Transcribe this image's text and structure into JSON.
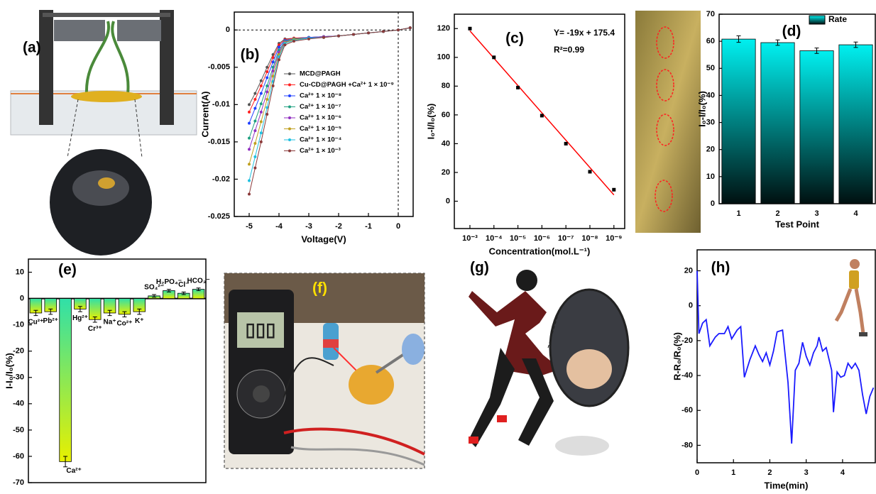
{
  "figure_labels": {
    "a": "(a)",
    "f": "(f)",
    "g": "(g)"
  },
  "chart_data": [
    {
      "type": "line",
      "title": "(b)",
      "xlabel": "Voltage(V)",
      "ylabel": "Current(A)",
      "markers": true,
      "xlim": [
        -5.5,
        0.5
      ],
      "ylim": [
        -0.025,
        0.0024
      ],
      "xticks": [
        -5,
        -4,
        -3,
        -2,
        -1,
        0
      ],
      "yticks": [
        0,
        -0.005,
        -0.01,
        -0.015,
        -0.02,
        -0.025
      ],
      "ref_lines": {
        "x": [
          0
        ],
        "y": [
          0
        ]
      },
      "x": [
        -5,
        -4.8,
        -4.6,
        -4.4,
        -4.2,
        -4,
        -3.8,
        -3.5,
        -3,
        -2.5,
        -2,
        -1.5,
        -1,
        -0.5,
        0,
        0.4
      ],
      "series": [
        {
          "name": "MCD@PAGH",
          "color": "#555555",
          "values": [
            -0.01,
            -0.0085,
            -0.0068,
            -0.005,
            -0.0033,
            -0.0018,
            -0.0012,
            -0.0011,
            -0.001,
            -0.0009,
            -0.0008,
            -0.0006,
            -0.0004,
            -0.0002,
            0,
            0.0003
          ]
        },
        {
          "name": "Cu-CD@PAGH +Ca²⁺ 1 × 10⁻⁹",
          "color": "#ff2020",
          "values": [
            -0.011,
            -0.0093,
            -0.0075,
            -0.0056,
            -0.0037,
            -0.002,
            -0.0013,
            -0.0011,
            -0.001,
            -0.0009,
            -0.0008,
            -0.0006,
            -0.0004,
            -0.0002,
            0,
            0.0003
          ]
        },
        {
          "name": "Ca²⁺ 1 × 10⁻⁸",
          "color": "#2040ff",
          "values": [
            -0.0125,
            -0.0105,
            -0.0085,
            -0.0064,
            -0.0043,
            -0.0023,
            -0.0014,
            -0.0012,
            -0.001,
            -0.0009,
            -0.0008,
            -0.0006,
            -0.0004,
            -0.0002,
            0,
            0.0003
          ]
        },
        {
          "name": "Ca²⁺ 1 × 10⁻⁷",
          "color": "#20a080",
          "values": [
            -0.0145,
            -0.0122,
            -0.0099,
            -0.0075,
            -0.005,
            -0.0027,
            -0.0015,
            -0.0012,
            -0.0011,
            -0.0009,
            -0.0008,
            -0.0006,
            -0.0004,
            -0.0002,
            0,
            0.0003
          ]
        },
        {
          "name": "Ca²⁺ 1 × 10⁻⁶",
          "color": "#9030c0",
          "values": [
            -0.016,
            -0.0135,
            -0.011,
            -0.0083,
            -0.0055,
            -0.003,
            -0.0016,
            -0.0013,
            -0.0011,
            -0.0009,
            -0.0008,
            -0.0006,
            -0.0004,
            -0.0002,
            0,
            0.0003
          ]
        },
        {
          "name": "Ca²⁺ 1 × 10⁻⁵",
          "color": "#c0a020",
          "values": [
            -0.018,
            -0.0152,
            -0.0123,
            -0.0093,
            -0.0062,
            -0.0033,
            -0.0017,
            -0.0013,
            -0.0011,
            -0.001,
            -0.0008,
            -0.0006,
            -0.0004,
            -0.0002,
            0,
            0.0003
          ]
        },
        {
          "name": "Ca²⁺ 1 × 10⁻⁴",
          "color": "#20c0e0",
          "values": [
            -0.0202,
            -0.017,
            -0.0138,
            -0.0104,
            -0.0069,
            -0.0036,
            -0.0018,
            -0.0014,
            -0.0011,
            -0.001,
            -0.0008,
            -0.0006,
            -0.0004,
            -0.0002,
            0,
            0.0003
          ]
        },
        {
          "name": "Ca²⁺ 1 × 10⁻³",
          "color": "#8b3a3a",
          "values": [
            -0.022,
            -0.0185,
            -0.015,
            -0.0113,
            -0.0075,
            -0.004,
            -0.002,
            -0.0015,
            -0.0012,
            -0.001,
            -0.0008,
            -0.0006,
            -0.0004,
            -0.0002,
            0,
            0.0003
          ]
        }
      ]
    },
    {
      "type": "scatter",
      "title": "(c)",
      "xlabel": "Concentration(mol.L⁻¹)",
      "ylabel": "I₀-I/I₀(%)",
      "xlim": [
        2.35,
        9.45
      ],
      "ylim": [
        -19,
        130
      ],
      "xticks": [
        {
          "value": 3,
          "label": "10⁻³"
        },
        {
          "value": 4,
          "label": "10⁻⁴"
        },
        {
          "value": 5,
          "label": "10⁻⁵"
        },
        {
          "value": 6,
          "label": "10⁻⁶"
        },
        {
          "value": 7,
          "label": "10⁻⁷"
        },
        {
          "value": 8,
          "label": "10⁻⁸"
        },
        {
          "value": 9,
          "label": "10⁻⁹"
        }
      ],
      "yticks": [
        0,
        20,
        40,
        60,
        80,
        100,
        120
      ],
      "x": [
        3,
        4,
        5,
        6,
        7,
        8,
        9
      ],
      "series": [
        {
          "color": "#000000",
          "values": [
            120,
            100,
            79,
            59.5,
            40,
            20.5,
            8
          ]
        }
      ],
      "fit": {
        "slope": -19,
        "intercept": 175.4,
        "color": "#ff0000"
      },
      "annotations": [
        "Y= -19x + 175.4",
        "R²=0.99"
      ]
    },
    {
      "type": "bar",
      "title": "(d)",
      "xlabel": "Test Point",
      "ylabel": "I₀-I/I₀(%)",
      "ylim": [
        0,
        70
      ],
      "yticks": [
        0,
        10,
        20,
        30,
        40,
        50,
        60,
        70
      ],
      "categories": [
        "1",
        "2",
        "3",
        "4"
      ],
      "legend": "top",
      "series": [
        {
          "name": "Rate",
          "color": "#00f0f0",
          "values": [
            60.8,
            59.5,
            56.5,
            58.7
          ],
          "errors": [
            1.2,
            1.0,
            1.0,
            1.0
          ]
        }
      ]
    },
    {
      "type": "bar",
      "title": "(e)",
      "ylabel": "I-I₀/I₀(%)",
      "ylim": [
        -70,
        15
      ],
      "yticks": [
        10,
        0,
        -10,
        -20,
        -30,
        -40,
        -50,
        -60,
        -70
      ],
      "categories": [
        "Cu²⁺",
        "Pb²⁺",
        "Ca²⁺",
        "Hg²⁺",
        "Cr³⁺",
        "Na⁺",
        "Co²⁺",
        "K⁺",
        "SO₄²⁻",
        "H₂PO₄⁻",
        "Cl⁻",
        "HCO₃⁻"
      ],
      "series": [
        {
          "color": "#e8f000",
          "values": [
            -5.5,
            -5,
            -62,
            -4,
            -8,
            -5.5,
            -6,
            -5,
            1,
            3,
            2,
            3.5
          ],
          "errors": [
            1,
            1,
            2,
            1,
            1,
            1,
            1,
            1,
            0.5,
            0.5,
            0.5,
            0.5
          ]
        }
      ]
    },
    {
      "type": "line",
      "title": "(h)",
      "xlabel": "Time(min)",
      "ylabel": "R-R₀/R₀(%)",
      "xlim": [
        0,
        4.9
      ],
      "ylim": [
        -90,
        32
      ],
      "xticks": [
        0,
        1,
        2,
        3,
        4
      ],
      "yticks": [
        20,
        0,
        -20,
        -40,
        -60,
        -80
      ],
      "x": [
        0,
        0.05,
        0.15,
        0.25,
        0.35,
        0.5,
        0.6,
        0.75,
        0.85,
        0.95,
        1.1,
        1.2,
        1.3,
        1.45,
        1.6,
        1.7,
        1.8,
        1.9,
        2.0,
        2.1,
        2.2,
        2.35,
        2.5,
        2.6,
        2.7,
        2.8,
        2.9,
        3.0,
        3.1,
        3.2,
        3.3,
        3.35,
        3.45,
        3.55,
        3.7,
        3.75,
        3.85,
        3.95,
        4.05,
        4.15,
        4.25,
        4.35,
        4.45,
        4.55,
        4.65,
        4.75,
        4.85
      ],
      "series": [
        {
          "color": "#1a1aff",
          "values": [
            20,
            -16,
            -10,
            -8,
            -23,
            -18,
            -16,
            -16,
            -12,
            -19,
            -14,
            -12,
            -41,
            -31,
            -23,
            -28,
            -32,
            -27,
            -34,
            -26,
            -15,
            -14,
            -44,
            -79,
            -37,
            -33,
            -21,
            -29,
            -34,
            -27,
            -23,
            -18,
            -26,
            -24,
            -37,
            -61,
            -38,
            -41,
            -40,
            -33,
            -36,
            -33,
            -37,
            -51,
            -62,
            -52,
            -47
          ]
        }
      ]
    }
  ]
}
